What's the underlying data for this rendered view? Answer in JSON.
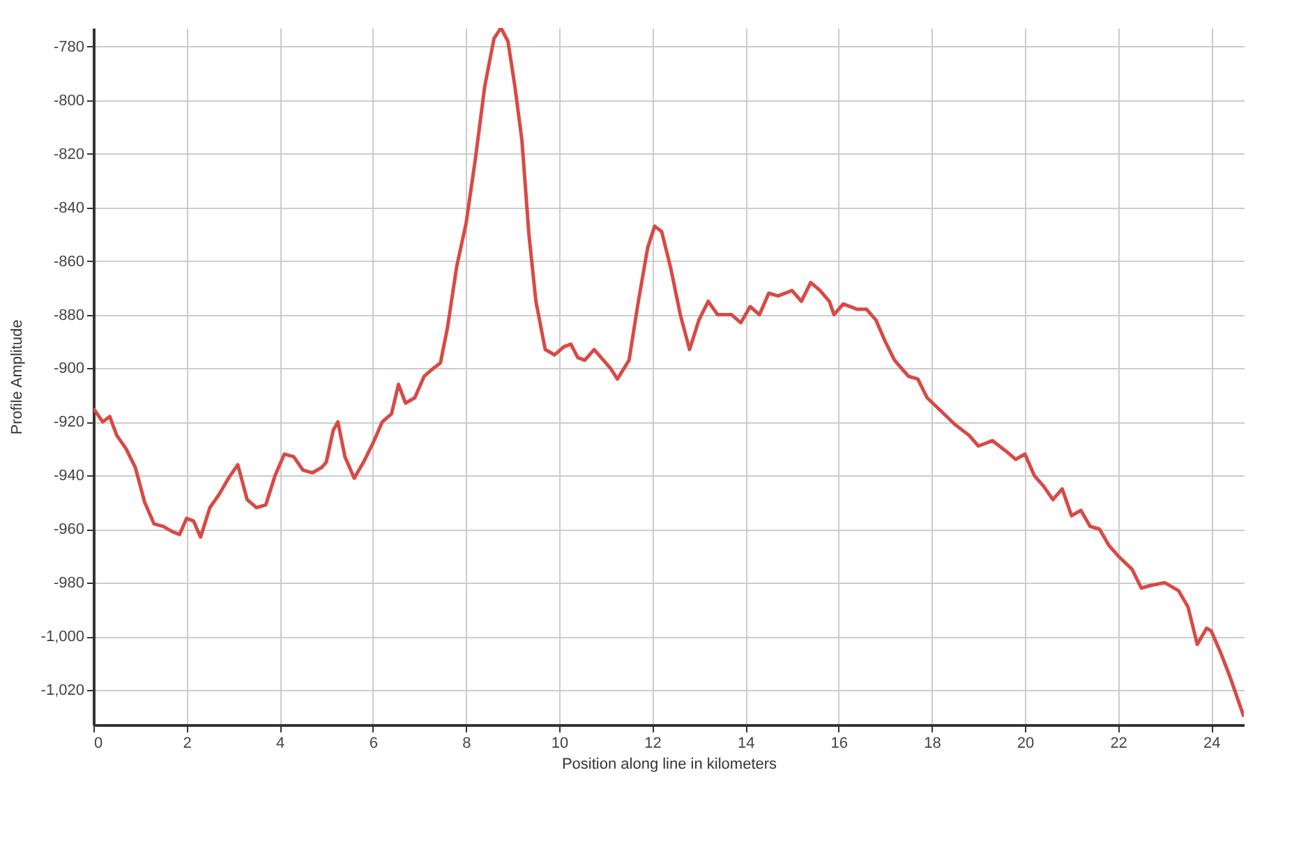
{
  "chart_data": {
    "type": "line",
    "xlabel": "Position along line in kilometers",
    "ylabel": "Profile Amplitude",
    "xlim": [
      0,
      24.7
    ],
    "xticks": [
      0,
      2,
      4,
      6,
      8,
      10,
      12,
      14,
      16,
      18,
      20,
      22,
      24
    ],
    "ylim": [
      -1033,
      -773
    ],
    "yticks": [
      {
        "value": -780,
        "label": "-780"
      },
      {
        "value": -800,
        "label": "-800"
      },
      {
        "value": -820,
        "label": "-820"
      },
      {
        "value": -840,
        "label": "-840"
      },
      {
        "value": -860,
        "label": "-860"
      },
      {
        "value": -880,
        "label": "-880"
      },
      {
        "value": -900,
        "label": "-900"
      },
      {
        "value": -920,
        "label": "-920"
      },
      {
        "value": -940,
        "label": "-940"
      },
      {
        "value": -960,
        "label": "-960"
      },
      {
        "value": -980,
        "label": "-980"
      },
      {
        "value": -1000,
        "label": "-1,000"
      },
      {
        "value": -1020,
        "label": "-1,020"
      }
    ],
    "grid": true,
    "line_style": "solid",
    "marker": "none",
    "series": [
      {
        "color": "#d84a45",
        "x": [
          0,
          0.2,
          0.35,
          0.5,
          0.7,
          0.9,
          1.1,
          1.3,
          1.5,
          1.7,
          1.85,
          2.0,
          2.15,
          2.3,
          2.5,
          2.7,
          2.9,
          3.1,
          3.3,
          3.5,
          3.7,
          3.9,
          4.1,
          4.3,
          4.5,
          4.7,
          4.9,
          5.0,
          5.15,
          5.25,
          5.4,
          5.6,
          5.8,
          6.0,
          6.2,
          6.4,
          6.55,
          6.7,
          6.9,
          7.1,
          7.3,
          7.45,
          7.6,
          7.8,
          8.0,
          8.2,
          8.4,
          8.6,
          8.75,
          8.9,
          9.05,
          9.2,
          9.35,
          9.5,
          9.7,
          9.9,
          10.1,
          10.25,
          10.4,
          10.55,
          10.75,
          10.9,
          11.1,
          11.25,
          11.5,
          11.7,
          11.9,
          12.05,
          12.2,
          12.4,
          12.6,
          12.8,
          13.0,
          13.2,
          13.4,
          13.7,
          13.9,
          14.1,
          14.3,
          14.5,
          14.7,
          15.0,
          15.2,
          15.4,
          15.6,
          15.8,
          15.9,
          16.1,
          16.4,
          16.6,
          16.8,
          17.0,
          17.2,
          17.5,
          17.7,
          17.9,
          18.2,
          18.5,
          18.8,
          19.0,
          19.3,
          19.6,
          19.8,
          20.0,
          20.2,
          20.4,
          20.6,
          20.8,
          21.0,
          21.2,
          21.4,
          21.6,
          21.8,
          22.0,
          22.3,
          22.5,
          22.7,
          23.0,
          23.3,
          23.5,
          23.7,
          23.9,
          24.0,
          24.2,
          24.4,
          24.7
        ],
        "values": [
          -915,
          -920,
          -918,
          -925,
          -930,
          -937,
          -950,
          -958,
          -959,
          -961,
          -962,
          -956,
          -957,
          -963,
          -952,
          -947,
          -941,
          -936,
          -949,
          -952,
          -951,
          -940,
          -932,
          -933,
          -938,
          -939,
          -937,
          -935,
          -923,
          -920,
          -933,
          -941,
          -935,
          -928,
          -920,
          -917,
          -906,
          -913,
          -911,
          -903,
          -900,
          -898,
          -885,
          -862,
          -846,
          -822,
          -795,
          -777,
          -773,
          -778,
          -795,
          -815,
          -850,
          -875,
          -893,
          -895,
          -892,
          -891,
          -896,
          -897,
          -893,
          -896,
          -900,
          -904,
          -897,
          -875,
          -855,
          -847,
          -849,
          -863,
          -880,
          -893,
          -882,
          -875,
          -880,
          -880,
          -883,
          -877,
          -880,
          -872,
          -873,
          -871,
          -875,
          -868,
          -871,
          -875,
          -880,
          -876,
          -878,
          -878,
          -882,
          -890,
          -897,
          -903,
          -904,
          -911,
          -916,
          -921,
          -925,
          -929,
          -927,
          -931,
          -934,
          -932,
          -940,
          -944,
          -949,
          -945,
          -955,
          -953,
          -959,
          -960,
          -966,
          -970,
          -975,
          -982,
          -981,
          -980,
          -983,
          -989,
          -1003,
          -997,
          -998,
          -1006,
          -1015,
          -1030
        ]
      }
    ]
  }
}
